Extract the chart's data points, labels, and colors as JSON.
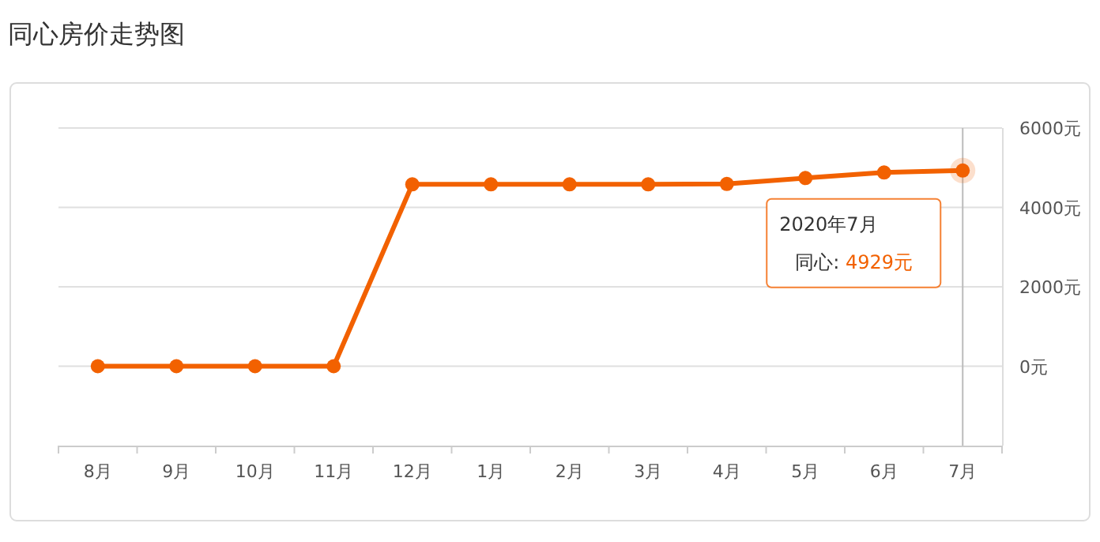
{
  "chart_data": {
    "type": "line",
    "title": "同心房价走势图",
    "categories": [
      "8月",
      "9月",
      "10月",
      "11月",
      "12月",
      "1月",
      "2月",
      "3月",
      "4月",
      "5月",
      "6月",
      "7月"
    ],
    "series": [
      {
        "color": "#f26100",
        "values": [
          0,
          0,
          0,
          0,
          4580,
          4580,
          4580,
          4580,
          4590,
          4740,
          4880,
          4929
        ]
      }
    ],
    "ylim": [
      -2000,
      6000
    ],
    "yticks": [
      {
        "value": 0,
        "label": "0元"
      },
      {
        "value": 2000,
        "label": "2000元"
      },
      {
        "value": 4000,
        "label": "4000元"
      },
      {
        "value": 6000,
        "label": "6000元"
      }
    ],
    "grid": "y",
    "marker": "circle",
    "line_style": "solid",
    "ref_lines": [
      {
        "axis": "x",
        "value": "7月",
        "color": "#bbbbbb"
      }
    ],
    "annotations": [
      "2020年7月",
      "同心: 4929元"
    ]
  }
}
